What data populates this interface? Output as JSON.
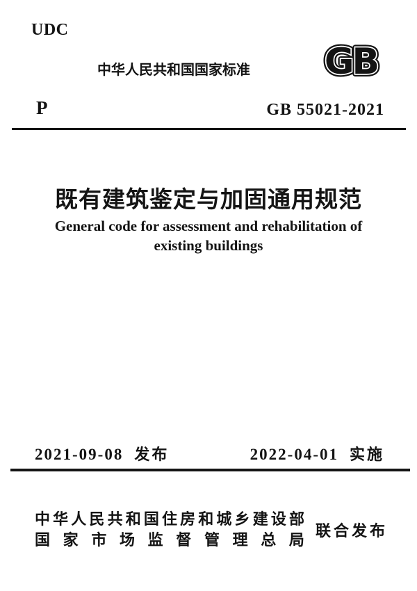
{
  "page": {
    "udc": "UDC",
    "header_title": "中华人民共和国国家标准",
    "gb_logo_text": "GB",
    "doc_class": "P",
    "standard_number": "GB 55021-2021",
    "title_cn": "既有建筑鉴定与加固通用规范",
    "title_en_line1": "General code for assessment and rehabilitation of",
    "title_en_line2": "existing buildings",
    "issue_date": "2021-09-08",
    "issue_label": "发布",
    "effective_date": "2022-04-01",
    "effective_label": "实施",
    "publisher_line1": "中华人民共和国住房和城乡建设部",
    "publisher_line2": "国家市场监督管理总局",
    "joint_publish_label": "联合发布"
  },
  "colors": {
    "ink": "#141414",
    "background": "#ffffff"
  }
}
